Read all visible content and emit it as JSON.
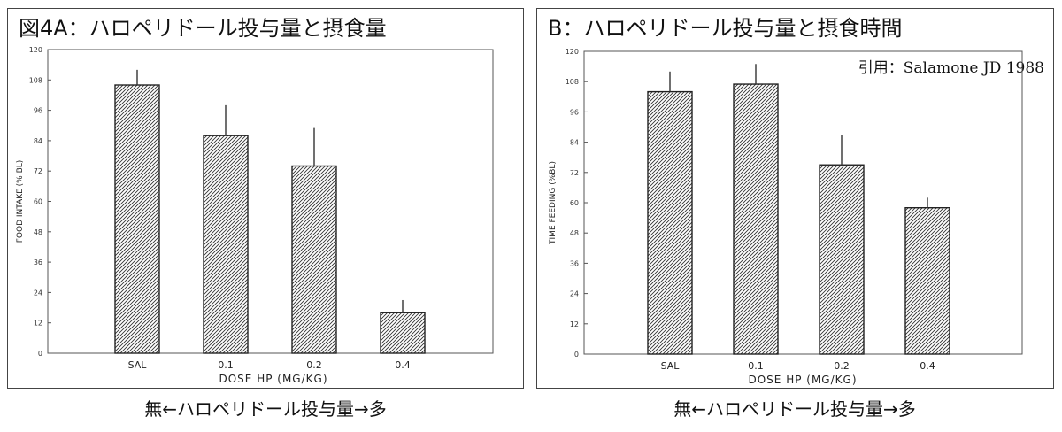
{
  "colors": {
    "bar_fill": "#ffffff",
    "hatch": "#333333",
    "axis": "#555555",
    "frame": "#444444"
  },
  "panel_a": {
    "title": "図4A：ハロペリドール投与量と摂食量"
  },
  "panel_b": {
    "title": "B：ハロペリドール投与量と摂食時間",
    "citation": "引用：Salamone JD 1988"
  },
  "caption_a": "無←ハロペリドール投与量→多",
  "caption_b": "無←ハロペリドール投与量→多",
  "chart_data": [
    {
      "type": "bar",
      "categories": [
        "SAL",
        "0.1",
        "0.2",
        "0.4"
      ],
      "values": [
        106,
        86,
        74,
        16
      ],
      "errors": [
        6,
        12,
        15,
        5
      ],
      "xlabel": "DOSE HP (MG/KG)",
      "ylabel": "FOOD INTAKE (% BL)",
      "ylim": [
        0,
        120
      ],
      "yticks": [
        "0",
        "12",
        "24",
        "36",
        "48",
        "60",
        "72",
        "84",
        "96",
        "108",
        "120"
      ],
      "grid": false
    },
    {
      "type": "bar",
      "categories": [
        "SAL",
        "0.1",
        "0.2",
        "0.4"
      ],
      "values": [
        104,
        107,
        75,
        58
      ],
      "errors": [
        8,
        8,
        12,
        4
      ],
      "xlabel": "DOSE HP (MG/KG)",
      "ylabel": "TIME FEEDING (%BL)",
      "ylim": [
        0,
        120
      ],
      "yticks": [
        "0",
        "12",
        "24",
        "36",
        "48",
        "60",
        "72",
        "84",
        "96",
        "108",
        "120"
      ],
      "grid": false
    }
  ]
}
